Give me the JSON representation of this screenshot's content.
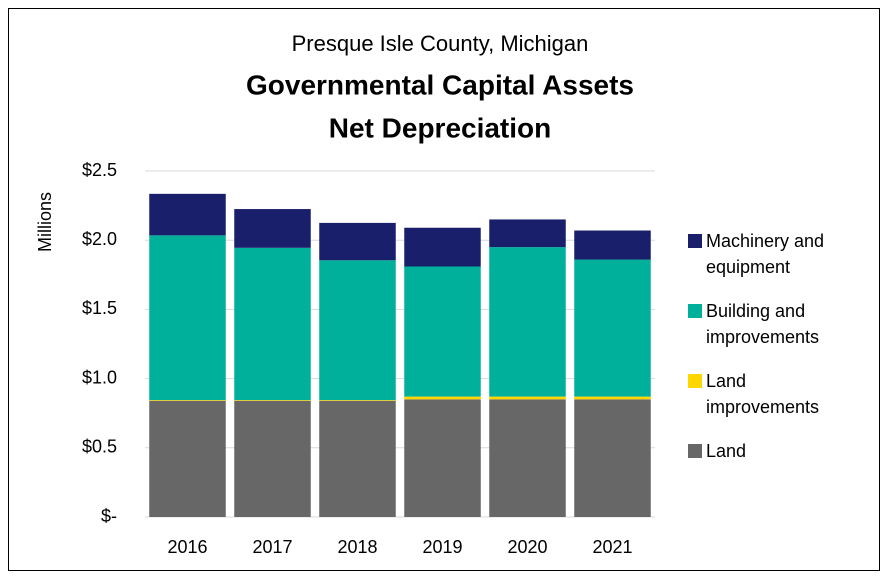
{
  "chart_data": {
    "type": "stacked_bar",
    "subtitle": "Presque Isle County, Michigan",
    "title": [
      "Governmental Capital Assets",
      "Net Depreciation"
    ],
    "y_label": "Millions",
    "categories": [
      "2016",
      "2017",
      "2018",
      "2019",
      "2020",
      "2021"
    ],
    "series": [
      {
        "name": "Land",
        "color": "#676767",
        "values": [
          0.84,
          0.84,
          0.84,
          0.85,
          0.85,
          0.85
        ]
      },
      {
        "name": "Land improvements",
        "color": "#ffd700",
        "values": [
          0.005,
          0.005,
          0.005,
          0.02,
          0.02,
          0.02
        ]
      },
      {
        "name": "Building and improvements",
        "color": "#00b09b",
        "values": [
          1.19,
          1.1,
          1.01,
          0.94,
          1.08,
          0.99
        ]
      },
      {
        "name": "Machinery and equipment",
        "color": "#1a1f6b",
        "values": [
          0.3,
          0.28,
          0.27,
          0.28,
          0.2,
          0.21
        ]
      }
    ],
    "ylim": [
      0,
      2.5
    ],
    "yticks": [
      {
        "value": 0,
        "label": "$-"
      },
      {
        "value": 0.5,
        "label": "$0.5"
      },
      {
        "value": 1,
        "label": "$1.0"
      },
      {
        "value": 1.5,
        "label": "$1.5"
      },
      {
        "value": 2,
        "label": "$2.0"
      },
      {
        "value": 2.5,
        "label": "$2.5"
      }
    ],
    "grid": true,
    "legend": "right"
  }
}
